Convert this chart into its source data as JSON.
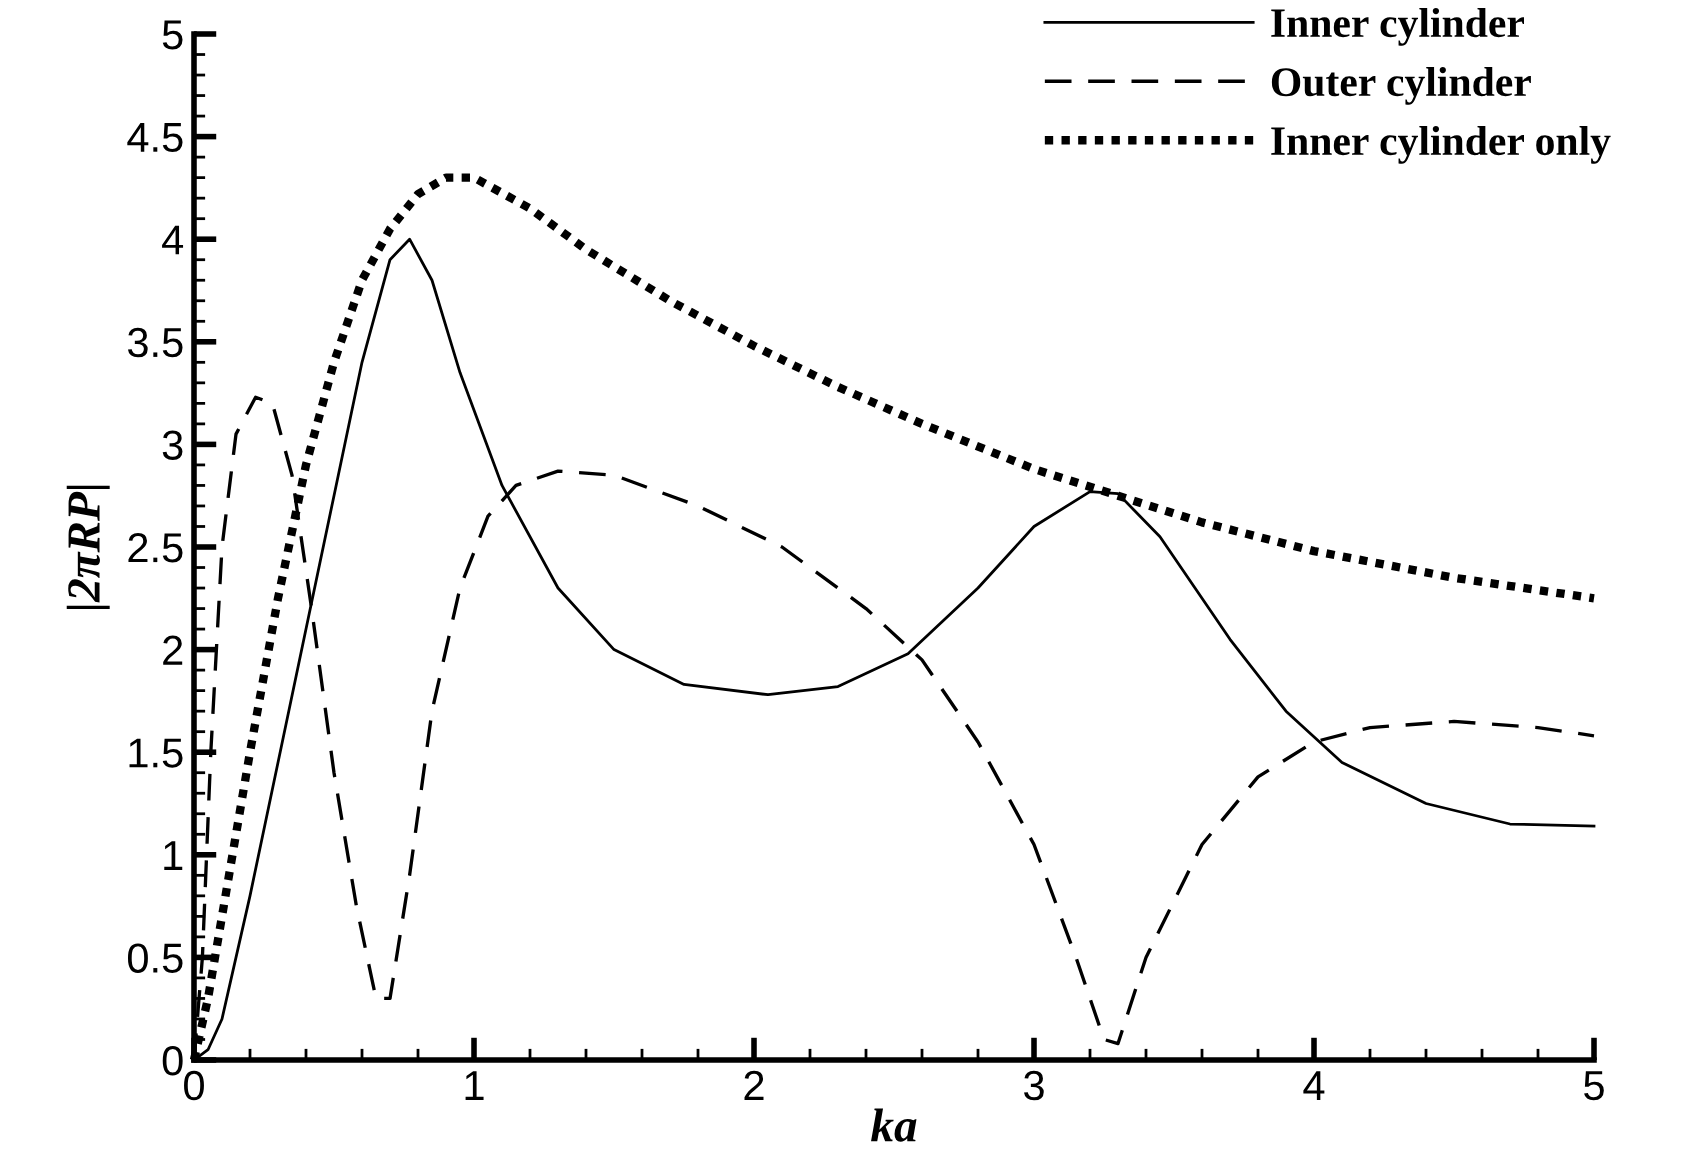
{
  "chart_data": {
    "type": "line",
    "xlabel": "ka",
    "ylabel": "|2πRP|",
    "xlim": [
      0,
      5
    ],
    "ylim": [
      0,
      5
    ],
    "xticks": [
      0,
      1,
      2,
      3,
      4,
      5
    ],
    "yticks": [
      0,
      0.5,
      1,
      1.5,
      2,
      2.5,
      3,
      3.5,
      4,
      4.5,
      5
    ],
    "grid": false,
    "legend": "top right",
    "marker": "none",
    "series": [
      {
        "name": "Inner cylinder",
        "color": "#000000",
        "line_style": "solid",
        "x": [
          0,
          0.05,
          0.1,
          0.2,
          0.3,
          0.4,
          0.5,
          0.6,
          0.7,
          0.77,
          0.85,
          0.95,
          1.1,
          1.3,
          1.5,
          1.75,
          2.05,
          2.3,
          2.55,
          2.8,
          3.0,
          3.2,
          3.3,
          3.45,
          3.7,
          3.9,
          4.1,
          4.4,
          4.7,
          5
        ],
        "values": [
          0,
          0.05,
          0.2,
          0.8,
          1.45,
          2.1,
          2.75,
          3.4,
          3.9,
          4.0,
          3.8,
          3.35,
          2.8,
          2.3,
          2.0,
          1.83,
          1.78,
          1.82,
          1.98,
          2.3,
          2.6,
          2.77,
          2.76,
          2.55,
          2.05,
          1.7,
          1.45,
          1.25,
          1.15,
          1.14
        ]
      },
      {
        "name": "Outer cylinder",
        "color": "#000000",
        "line_style": "dashed",
        "x": [
          0,
          0.03,
          0.06,
          0.1,
          0.15,
          0.22,
          0.28,
          0.35,
          0.42,
          0.5,
          0.58,
          0.65,
          0.7,
          0.77,
          0.85,
          0.95,
          1.05,
          1.15,
          1.3,
          1.5,
          1.8,
          2.1,
          2.4,
          2.6,
          2.8,
          3.0,
          3.15,
          3.25,
          3.3,
          3.4,
          3.6,
          3.8,
          4.0,
          4.2,
          4.5,
          4.8,
          5
        ],
        "values": [
          0,
          0.5,
          1.5,
          2.5,
          3.05,
          3.23,
          3.2,
          2.85,
          2.2,
          1.4,
          0.75,
          0.3,
          0.3,
          0.9,
          1.7,
          2.3,
          2.65,
          2.8,
          2.87,
          2.85,
          2.7,
          2.5,
          2.2,
          1.95,
          1.55,
          1.05,
          0.5,
          0.1,
          0.08,
          0.5,
          1.05,
          1.38,
          1.55,
          1.62,
          1.65,
          1.62,
          1.58
        ]
      },
      {
        "name": "Inner cylinder only",
        "color": "#000000",
        "line_style": "dotted",
        "x": [
          0,
          0.05,
          0.1,
          0.2,
          0.3,
          0.4,
          0.5,
          0.6,
          0.7,
          0.8,
          0.9,
          1.0,
          1.2,
          1.4,
          1.7,
          2.0,
          2.3,
          2.6,
          3.0,
          3.3,
          3.6,
          4.0,
          4.5,
          5
        ],
        "values": [
          0,
          0.3,
          0.7,
          1.5,
          2.25,
          2.9,
          3.4,
          3.8,
          4.05,
          4.22,
          4.3,
          4.3,
          4.15,
          3.95,
          3.7,
          3.48,
          3.28,
          3.1,
          2.88,
          2.75,
          2.62,
          2.48,
          2.35,
          2.25
        ]
      }
    ]
  }
}
